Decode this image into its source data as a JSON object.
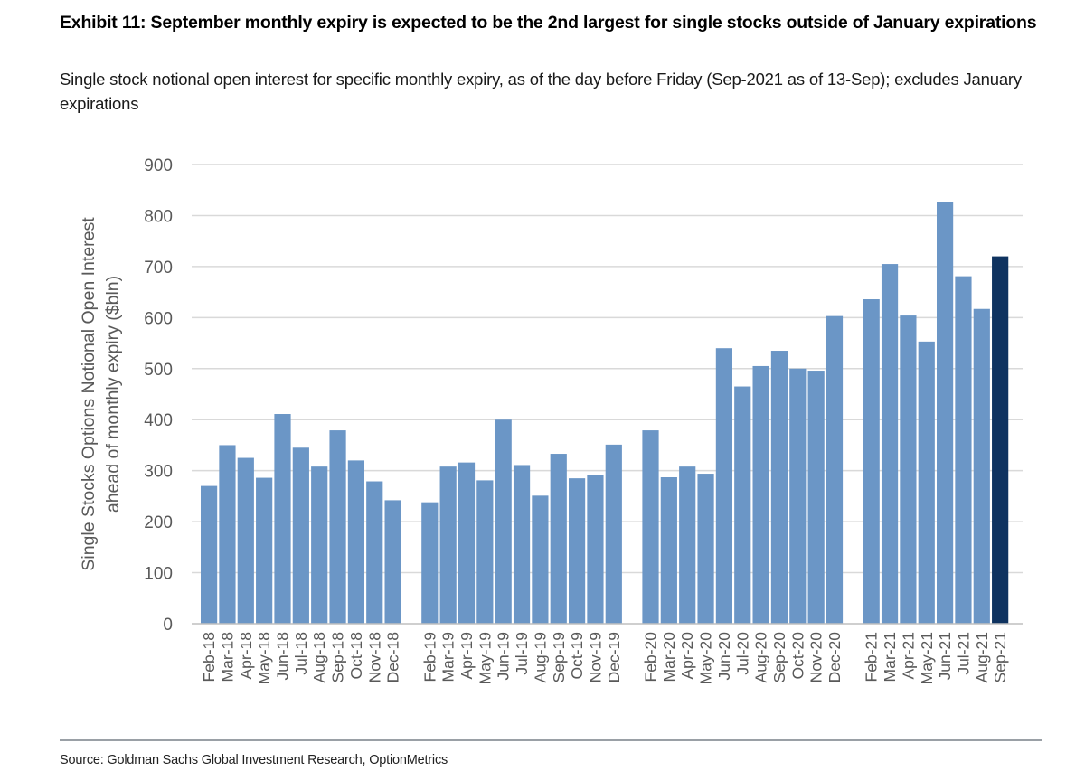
{
  "exhibit": {
    "title": "Exhibit 11: September monthly expiry is expected to be the 2nd largest for single stocks outside of January expirations",
    "subtitle": "Single stock notional open interest for specific monthly expiry, as of the day before Friday (Sep-2021 as of 13-Sep); excludes January expirations",
    "source": "Source: Goldman Sachs Global Investment Research, OptionMetrics"
  },
  "colors": {
    "bar": "#6b96c6",
    "highlight_bar": "#0f3360",
    "grid": "#d9d9d9",
    "axis_text": "#595959",
    "axis_line": "#bfbfbf"
  },
  "chart_data": {
    "type": "bar",
    "title": "",
    "xlabel": "",
    "ylabel": [
      "Single Stocks Options Notional Open Interest",
      "ahead of monthly expiry ($bln)"
    ],
    "ylim": [
      0,
      900
    ],
    "yticks": [
      0,
      100,
      200,
      300,
      400,
      500,
      600,
      700,
      800,
      900
    ],
    "grid": true,
    "legend": "none",
    "highlight": "Sep-21",
    "groups": [
      {
        "categories": [
          "Feb-18",
          "Mar-18",
          "Apr-18",
          "May-18",
          "Jun-18",
          "Jul-18",
          "Aug-18",
          "Sep-18",
          "Oct-18",
          "Nov-18",
          "Dec-18"
        ],
        "values": [
          270,
          350,
          325,
          286,
          411,
          345,
          308,
          379,
          320,
          279,
          242
        ]
      },
      {
        "categories": [
          "Feb-19",
          "Mar-19",
          "Apr-19",
          "May-19",
          "Jun-19",
          "Jul-19",
          "Aug-19",
          "Sep-19",
          "Oct-19",
          "Nov-19",
          "Dec-19"
        ],
        "values": [
          238,
          308,
          316,
          281,
          400,
          311,
          251,
          333,
          285,
          291,
          351
        ]
      },
      {
        "categories": [
          "Feb-20",
          "Mar-20",
          "Apr-20",
          "May-20",
          "Jun-20",
          "Jul-20",
          "Aug-20",
          "Sep-20",
          "Oct-20",
          "Nov-20",
          "Dec-20"
        ],
        "values": [
          379,
          287,
          308,
          294,
          540,
          465,
          505,
          535,
          500,
          496,
          603
        ]
      },
      {
        "categories": [
          "Feb-21",
          "Mar-21",
          "Apr-21",
          "May-21",
          "Jun-21",
          "Jul-21",
          "Aug-21",
          "Sep-21"
        ],
        "values": [
          636,
          705,
          604,
          553,
          827,
          681,
          617,
          720
        ]
      }
    ]
  }
}
